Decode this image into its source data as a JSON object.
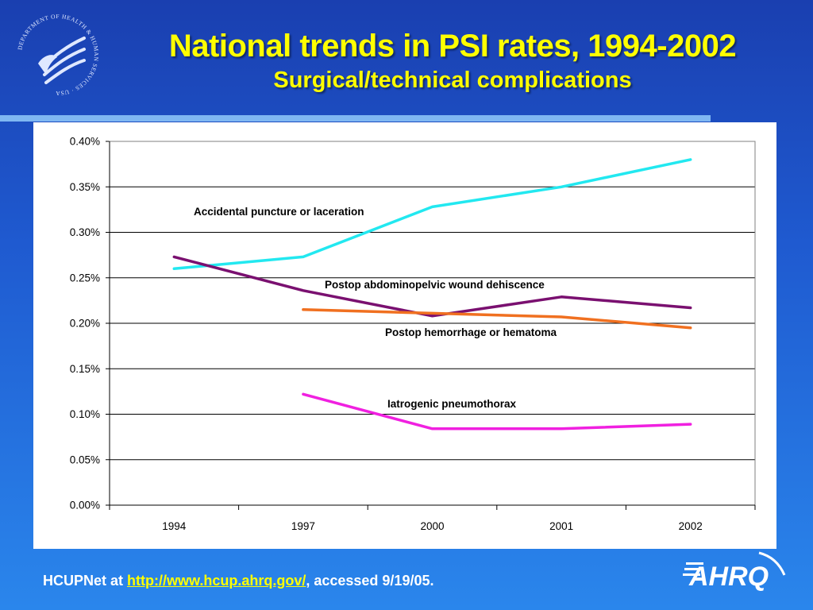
{
  "header": {
    "title": "National trends in PSI rates, 1994-2002",
    "subtitle": "Surgical/technical complications"
  },
  "seal": {
    "icon": "hhs-eagle-seal-icon",
    "text": "DEPARTMENT OF HEALTH & HUMAN SERVICES · USA"
  },
  "footer": {
    "prefix": "HCUPNet at ",
    "link": "http://www.hcup.ahrq.gov/",
    "suffix": ", accessed 9/19/05."
  },
  "logo": {
    "text": "AHRQ",
    "icon": "ahrq-logo-icon"
  },
  "colors": {
    "title": "#ffff00",
    "background_top": "#1a3fb0",
    "background_bottom": "#2a86ec",
    "rule": "#7fb7f2"
  },
  "chart_data": {
    "type": "line",
    "x": [
      "1994",
      "1997",
      "2000",
      "2001",
      "2002"
    ],
    "ylim": [
      0,
      0.004
    ],
    "yticks": [
      "0.00%",
      "0.05%",
      "0.10%",
      "0.15%",
      "0.20%",
      "0.25%",
      "0.30%",
      "0.35%",
      "0.40%"
    ],
    "grid": true,
    "series": [
      {
        "name": "Accidental puncture or laceration",
        "color": "#22e8f0",
        "values": [
          0.0026,
          0.00273,
          0.00328,
          0.0035,
          0.0038
        ]
      },
      {
        "name": "Postop abdominopelvic wound dehiscence",
        "color": "#7a1070",
        "values": [
          0.00273,
          0.00236,
          0.00208,
          0.00229,
          0.00217
        ]
      },
      {
        "name": "Postop hemorrhage or hematoma",
        "color": "#f07020",
        "values": [
          null,
          0.00215,
          0.00211,
          0.00207,
          0.00195
        ]
      },
      {
        "name": "Iatrogenic pneumothorax",
        "color": "#f020e0",
        "values": [
          null,
          0.00122,
          0.00084,
          0.00084,
          0.00089
        ]
      }
    ]
  }
}
